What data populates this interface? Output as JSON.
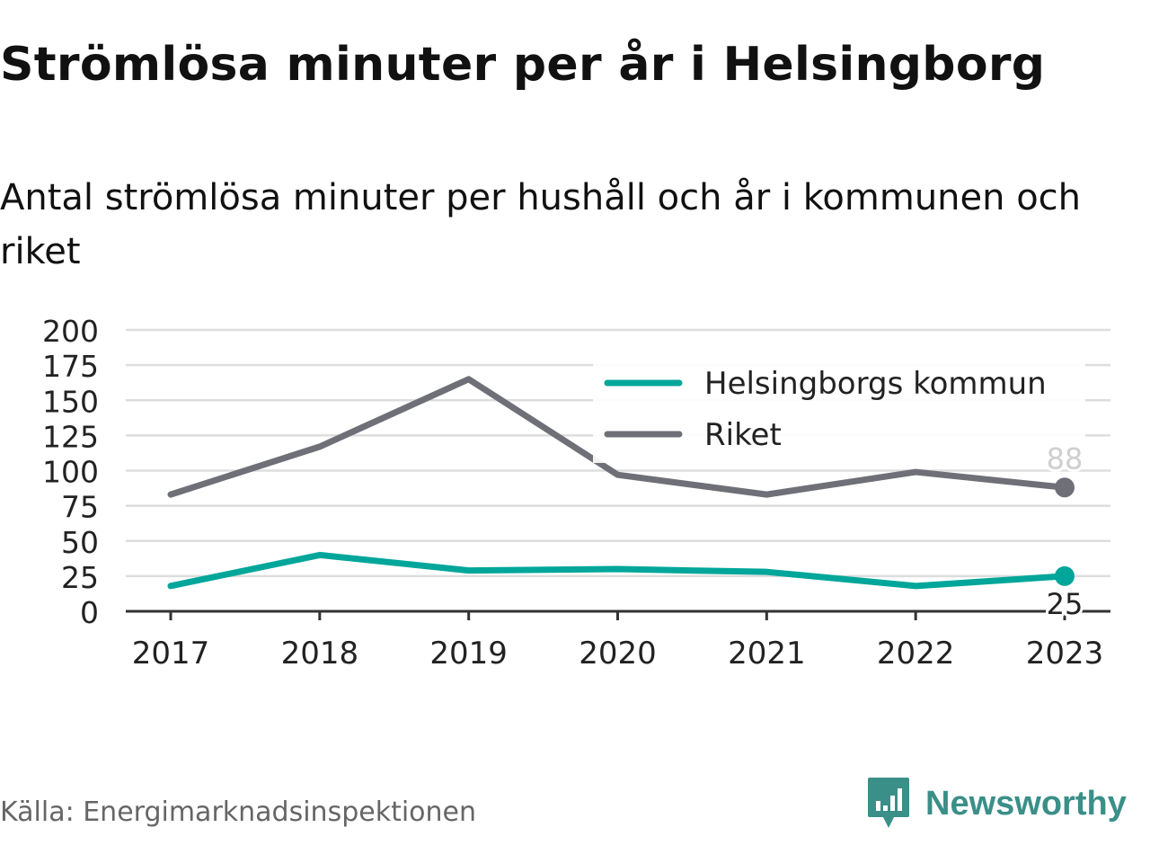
{
  "title": "Strömlösa minuter per år i Helsingborg",
  "subtitle": "Antal strömlösa minuter per hushåll och år i kommunen och riket",
  "source": "Källa: Energimarknadsinspektionen",
  "brand": {
    "name": "Newsworthy",
    "icon": "newsworthy-logo-icon",
    "color": "#3a8f88"
  },
  "chart_data": {
    "type": "line",
    "title": "Strömlösa minuter per år i Helsingborg",
    "subtitle": "Antal strömlösa minuter per hushåll och år i kommunen och riket",
    "x": [
      "2017",
      "2018",
      "2019",
      "2020",
      "2021",
      "2022",
      "2023"
    ],
    "ylim": [
      0,
      200
    ],
    "yticks": [
      0,
      25,
      50,
      75,
      100,
      125,
      150,
      175,
      200
    ],
    "grid": true,
    "legend_position": "top-right",
    "series": [
      {
        "name": "Helsingborgs kommun",
        "color": "#00a69a",
        "values": [
          18,
          40,
          29,
          30,
          28,
          18,
          25
        ],
        "end_label": "25"
      },
      {
        "name": "Riket",
        "color": "#6f6f78",
        "values": [
          83,
          117,
          165,
          97,
          83,
          99,
          88
        ],
        "end_label": "88"
      }
    ]
  }
}
